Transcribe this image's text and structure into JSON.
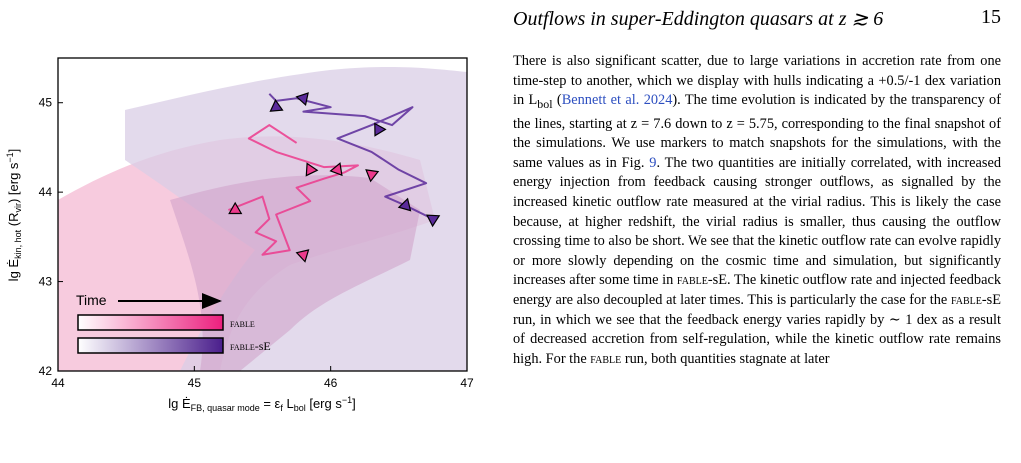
{
  "header": {
    "running_title": "Outflows in super-Eddington quasars at z ≳ 6",
    "page_number": "15"
  },
  "chart_data": {
    "type": "line",
    "xlabel": "lg Ė_FB, quasar mode = ε_f L_bol [erg s⁻¹]",
    "ylabel": "lg Ė_kin, hot (R_vir) [erg s⁻¹]",
    "xlim": [
      44,
      47
    ],
    "ylim": [
      42,
      45.5
    ],
    "x_ticks": [
      "44",
      "45",
      "46",
      "47"
    ],
    "y_ticks": [
      "42",
      "43",
      "44",
      "45"
    ],
    "time_label": "Time",
    "colors": {
      "fable": "#ec3a8c",
      "fable_se": "#5a2a9a",
      "fable_hull": "#f6c2d8",
      "fable_se_hull": "#d9cde6"
    },
    "series": [
      {
        "name": "FABLE",
        "x": [
          45.25,
          45.5,
          45.55,
          45.45,
          45.6,
          45.5,
          45.7,
          45.6,
          45.85,
          45.75,
          45.95,
          46.1,
          46.2,
          45.95,
          45.6,
          45.4,
          45.55,
          45.75
        ],
        "y": [
          43.8,
          43.95,
          43.7,
          43.55,
          43.45,
          43.3,
          43.35,
          43.75,
          43.9,
          44.05,
          44.15,
          44.22,
          44.3,
          44.28,
          44.45,
          44.6,
          44.75,
          44.55
        ]
      },
      {
        "name": "FABLE-sE",
        "x": [
          46.75,
          46.55,
          46.4,
          46.7,
          46.5,
          46.3,
          46.05,
          46.3,
          46.6,
          46.45,
          46.25,
          45.8,
          46.0,
          45.75,
          45.6,
          45.55
        ],
        "y": [
          43.7,
          43.85,
          43.95,
          44.1,
          44.25,
          44.45,
          44.6,
          44.75,
          44.95,
          44.75,
          44.85,
          44.9,
          44.95,
          45.05,
          45.02,
          45.1
        ]
      }
    ],
    "markers": [
      {
        "series": "FABLE",
        "x": 45.3,
        "y": 43.8
      },
      {
        "series": "FABLE",
        "x": 45.8,
        "y": 43.3
      },
      {
        "series": "FABLE",
        "x": 45.85,
        "y": 44.25
      },
      {
        "series": "FABLE",
        "x": 46.05,
        "y": 44.25
      },
      {
        "series": "FABLE",
        "x": 46.3,
        "y": 44.2
      },
      {
        "series": "FABLE-sE",
        "x": 45.6,
        "y": 44.95
      },
      {
        "series": "FABLE-sE",
        "x": 45.8,
        "y": 45.05
      },
      {
        "series": "FABLE-sE",
        "x": 46.35,
        "y": 44.7
      },
      {
        "series": "FABLE-sE",
        "x": 46.55,
        "y": 43.85
      },
      {
        "series": "FABLE-sE",
        "x": 46.75,
        "y": 43.7
      }
    ],
    "legend": [
      {
        "label": "FABLE",
        "label_sc": "fable"
      },
      {
        "label": "FABLE-sE",
        "label_sc": "fable",
        "label_suffix": "-sE"
      }
    ]
  },
  "paragraph": {
    "s1": "There is also significant scatter, due to large variations in accretion rate from one time-step to another, which we display with hulls indicating a +0.5/-1 dex variation in L",
    "s1_sub": "bol",
    "s1_open": " (",
    "cite": "Bennett et al. 2024",
    "s2": "). The time evolution is indicated by the transparency of the lines, starting at z = 7.6 down to z = 5.75, corresponding to the final snapshot of the simulations. We use markers to match snapshots for the simulations, with the same values as in Fig. ",
    "fig_ref": "9",
    "s3": ". The two quantities are initially correlated, with increased energy injection from feedback causing stronger outflows, as signalled by the increased kinetic outflow rate measured at the virial radius. This is likely the case because, at higher redshift, the virial radius is smaller, thus causing the outflow crossing time to also be short. We see that the kinetic outflow rate can evolve rapidly or more slowly depending on the cosmic time and simulation, but significantly increases after some time in ",
    "sc1": "fable",
    "s4": "-sE. The kinetic outflow rate and injected feedback energy are also decoupled at later times. This is particularly the case for the ",
    "sc2": "fable",
    "s5": "-sE run, in which we see that the feedback energy varies rapidly by ∼ 1 dex as a result of decreased accretion from self-regulation, while the kinetic outflow rate remains high. For the ",
    "sc3": "fable",
    "s6": " run, both quantities stagnate at later"
  }
}
